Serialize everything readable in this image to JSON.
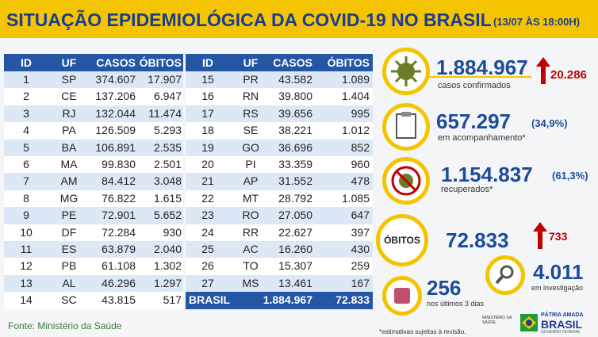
{
  "header": {
    "title": "SITUAÇÃO EPIDEMIOLÓGICA DA COVID-19 NO BRASIL",
    "timestamp": "(13/07 ÀS 18:00H)"
  },
  "tables": [
    {
      "columns": [
        "ID",
        "UF",
        "CASOS",
        "ÓBITOS"
      ],
      "rows": [
        [
          "1",
          "SP",
          "374.607",
          "17.907"
        ],
        [
          "2",
          "CE",
          "137.206",
          "6.947"
        ],
        [
          "3",
          "RJ",
          "132.044",
          "11.474"
        ],
        [
          "4",
          "PA",
          "126.509",
          "5.293"
        ],
        [
          "5",
          "BA",
          "106.891",
          "2.535"
        ],
        [
          "6",
          "MA",
          "99.830",
          "2.501"
        ],
        [
          "7",
          "AM",
          "84.412",
          "3.048"
        ],
        [
          "8",
          "MG",
          "76.822",
          "1.615"
        ],
        [
          "9",
          "PE",
          "72.901",
          "5.652"
        ],
        [
          "10",
          "DF",
          "72.284",
          "930"
        ],
        [
          "11",
          "ES",
          "63.879",
          "2.040"
        ],
        [
          "12",
          "PB",
          "61.108",
          "1.302"
        ],
        [
          "13",
          "AL",
          "46.296",
          "1.297"
        ],
        [
          "14",
          "SC",
          "43.815",
          "517"
        ]
      ]
    },
    {
      "columns": [
        "ID",
        "UF",
        "CASOS",
        "ÓBITOS"
      ],
      "rows": [
        [
          "15",
          "PR",
          "43.582",
          "1.089"
        ],
        [
          "16",
          "RN",
          "39.800",
          "1.404"
        ],
        [
          "17",
          "RS",
          "39.656",
          "995"
        ],
        [
          "18",
          "SE",
          "38.221",
          "1.012"
        ],
        [
          "19",
          "GO",
          "36.696",
          "852"
        ],
        [
          "20",
          "PI",
          "33.359",
          "960"
        ],
        [
          "21",
          "AP",
          "31.552",
          "478"
        ],
        [
          "22",
          "MT",
          "28.792",
          "1.085"
        ],
        [
          "23",
          "RO",
          "27.050",
          "647"
        ],
        [
          "24",
          "RR",
          "22.627",
          "397"
        ],
        [
          "25",
          "AC",
          "16.260",
          "430"
        ],
        [
          "26",
          "TO",
          "15.307",
          "259"
        ],
        [
          "27",
          "MS",
          "13.461",
          "167"
        ]
      ],
      "total": [
        "BRASIL",
        "1.884.967",
        "72.833"
      ]
    }
  ],
  "stats": {
    "confirmed": {
      "value": "1.884.967",
      "label": "casos confirmados",
      "increase": "20.286"
    },
    "monitoring": {
      "value": "657.297",
      "percent": "(34,9%)",
      "label": "em acompanhamento*"
    },
    "recovered": {
      "value": "1.154.837",
      "percent": "(61,3%)",
      "label": "recuperados*"
    },
    "deaths": {
      "label": "ÓBITOS",
      "value": "72.833",
      "increase": "733"
    },
    "last_days": {
      "value": "256",
      "label": "nos últimos 3 dias"
    },
    "investigation": {
      "value": "4.011",
      "label": "em investigação"
    }
  },
  "footnote": "*estimativas sujeitas à revisão.",
  "source": "Fonte: Ministério da Saúde",
  "logo": {
    "ministry": "MINISTÉRIO DA SAÚDE",
    "slogan": "PÁTRIA AMADA",
    "country": "BRASIL",
    "government": "GOVERNO FEDERAL"
  }
}
